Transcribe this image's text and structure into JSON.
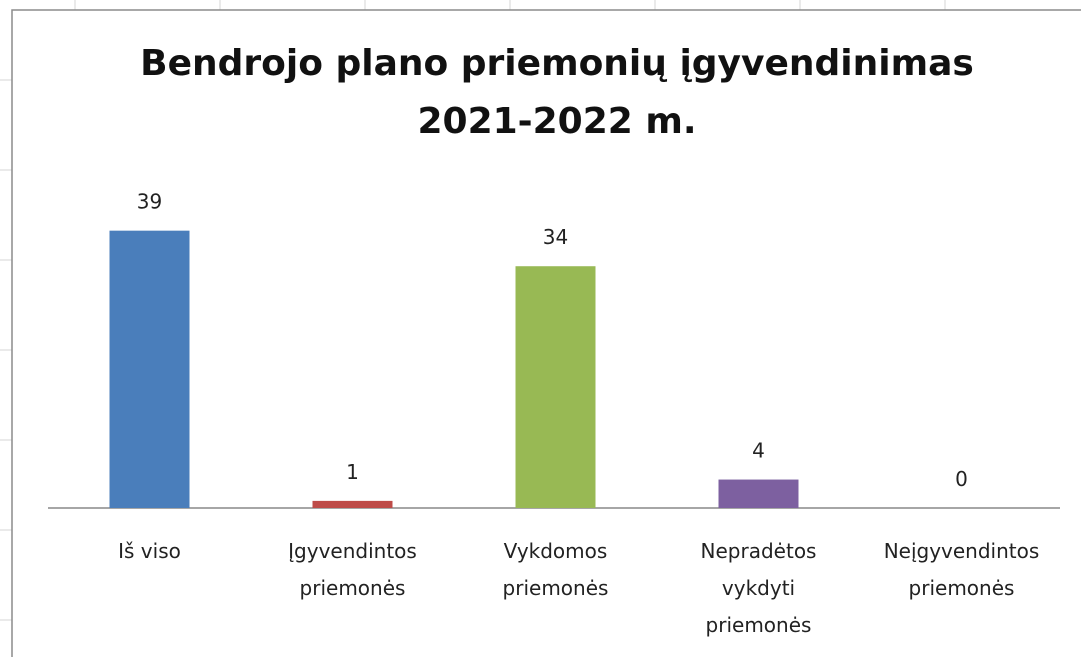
{
  "chart_data": {
    "type": "bar",
    "title": "Bendrojo plano priemonių įgyvendinimas\n2021-2022 m.",
    "categories": [
      "Iš viso",
      "Įgyvendintos\npriemonės",
      "Vykdomos\npriemonės",
      "Nepradėtos\nvykdyti\npriemonės",
      "Neįgyvendintos\npriemonės"
    ],
    "values": [
      39,
      1,
      34,
      4,
      0
    ],
    "colors": [
      "#4a7ebb",
      "#be4b48",
      "#98b954",
      "#7d60a0",
      "#46aac5"
    ],
    "ylim": [
      0,
      45
    ]
  }
}
